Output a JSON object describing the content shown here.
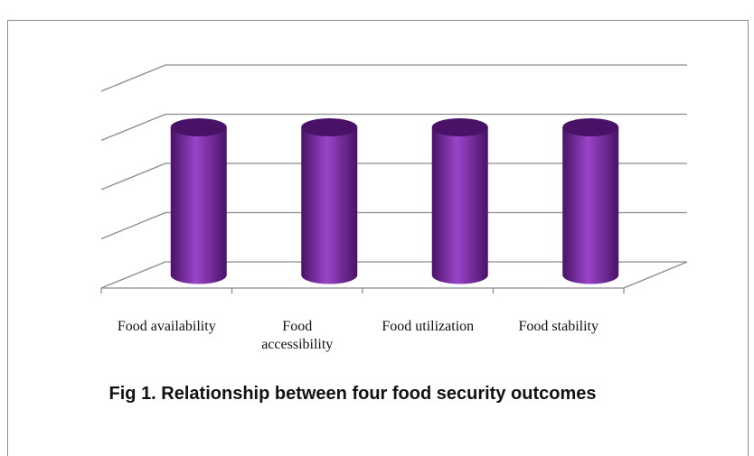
{
  "chart_data": {
    "type": "bar",
    "style": "3d-cylinder",
    "categories": [
      "Food availability",
      "Food accessibility",
      "Food utilization",
      "Food stability"
    ],
    "values": [
      3,
      3,
      3,
      3
    ],
    "ylim": [
      0,
      4
    ],
    "grid": true,
    "legend": "none",
    "title": "Fig 1. Relationship between  four food security outcomes",
    "bar_color": "#7B2AA8",
    "bar_color_dark": "#4A1266",
    "bar_color_light": "#9A45C9"
  }
}
